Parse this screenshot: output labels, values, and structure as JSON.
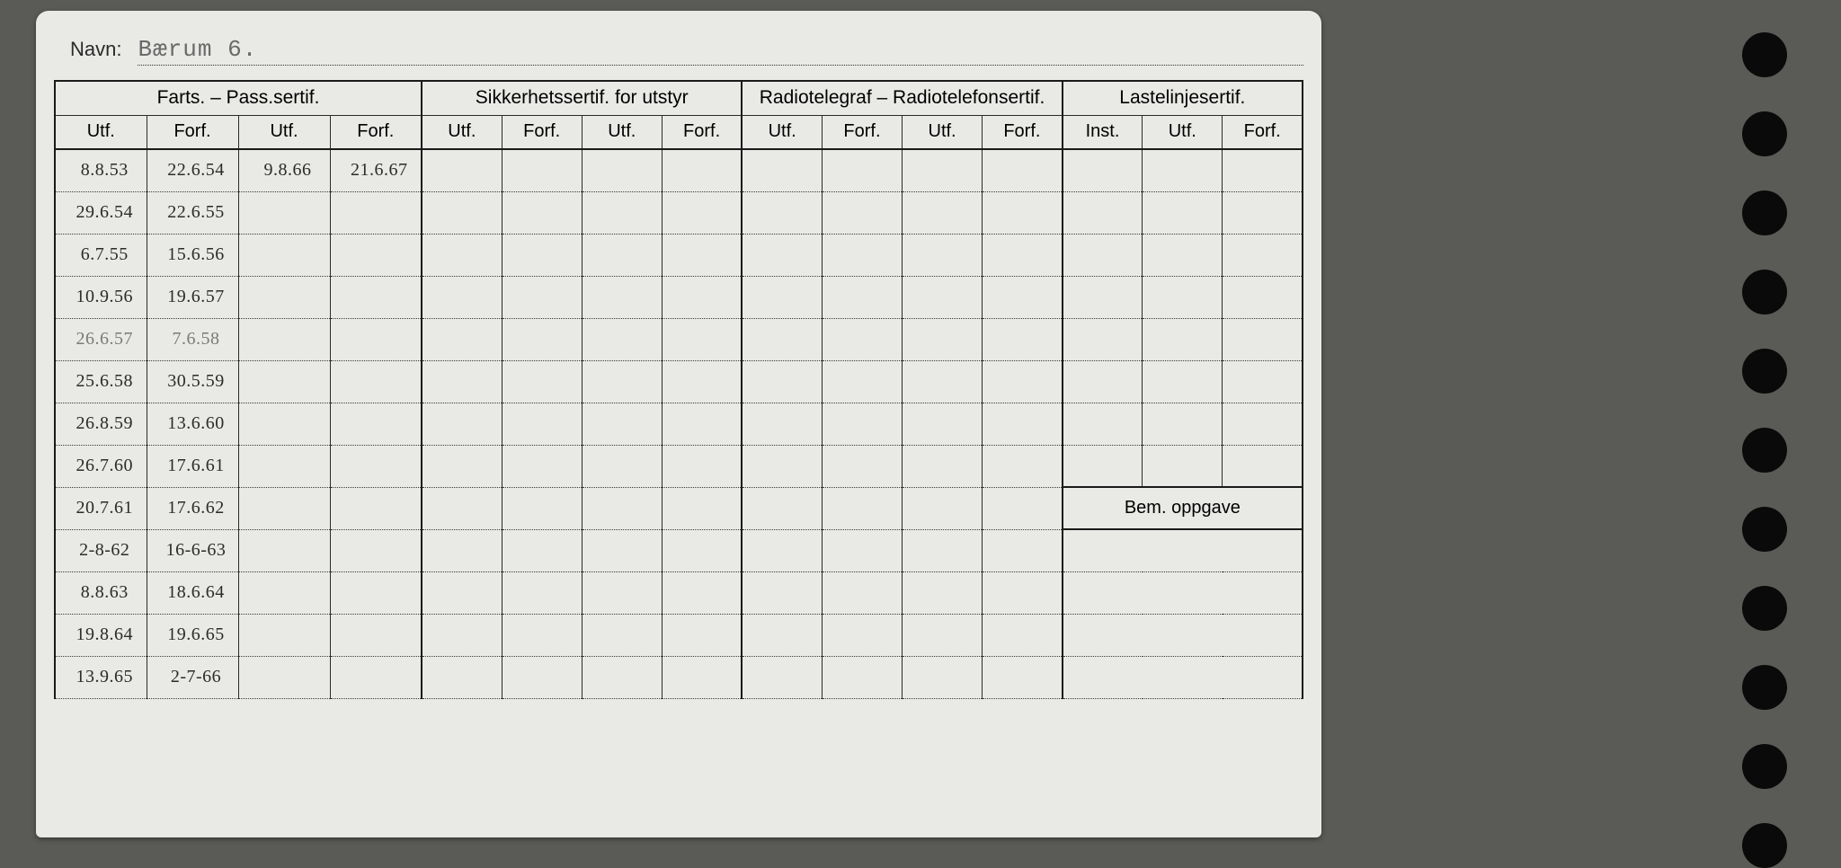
{
  "page_background": "#5a5a56",
  "card_background": "#e9eae6",
  "ink_color": "#2a2a2a",
  "hole_color": "#0a0a0a",
  "hole_count": 11,
  "navn": {
    "label": "Navn:",
    "value": "Bærum 6."
  },
  "section_headers": [
    "Farts. – Pass.sertif.",
    "Sikkerhetssertif. for utstyr",
    "Radiotelegraf – Radiotelefonsertif.",
    "Lastelinjesertif."
  ],
  "sub_headers": {
    "utf": "Utf.",
    "forf": "Forf.",
    "inst": "Inst."
  },
  "bem_label": "Bem. oppgave",
  "columns": [
    "farts.utf1",
    "farts.forf1",
    "farts.utf2",
    "farts.forf2",
    "sikk.utf1",
    "sikk.forf1",
    "sikk.utf2",
    "sikk.forf2",
    "radio.utf1",
    "radio.forf1",
    "radio.utf2",
    "radio.forf2",
    "laste.inst",
    "laste.utf",
    "laste.forf"
  ],
  "handwriting_font": "cursive",
  "handwriting_fontsize": 25,
  "faint_rows": [
    4
  ],
  "rows": [
    {
      "c0": "8.8.53",
      "c1": "22.6.54",
      "c2": "9.8.66",
      "c3": "21.6.67"
    },
    {
      "c0": "29.6.54",
      "c1": "22.6.55"
    },
    {
      "c0": "6.7.55",
      "c1": "15.6.56"
    },
    {
      "c0": "10.9.56",
      "c1": "19.6.57"
    },
    {
      "c0": "26.6.57",
      "c1": "7.6.58"
    },
    {
      "c0": "25.6.58",
      "c1": "30.5.59"
    },
    {
      "c0": "26.8.59",
      "c1": "13.6.60"
    },
    {
      "c0": "26.7.60",
      "c1": "17.6.61"
    },
    {
      "c0": "20.7.61",
      "c1": "17.6.62"
    },
    {
      "c0": "2-8-62",
      "c1": "16-6-63"
    },
    {
      "c0": "8.8.63",
      "c1": "18.6.64"
    },
    {
      "c0": "19.8.64",
      "c1": "19.6.65"
    },
    {
      "c0": "13.9.65",
      "c1": "2-7-66"
    }
  ],
  "row_count": 13,
  "bem_section_start_row": 8
}
